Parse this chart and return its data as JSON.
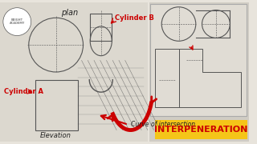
{
  "bg_color": "#e8e4dc",
  "bg_color_left": "#dcd8cf",
  "title_text": "INTERPENERATION",
  "title_color": "#cc0000",
  "title_bg": "#f5c518",
  "label_plan": "plan",
  "label_cyl_a": "Cylinder A",
  "label_cyl_b": "Cylinder B",
  "label_elevation": "Elevation",
  "label_curve": "Curve of intersection",
  "line_color": "#555555",
  "red_color": "#cc0000",
  "dark_color": "#222222"
}
